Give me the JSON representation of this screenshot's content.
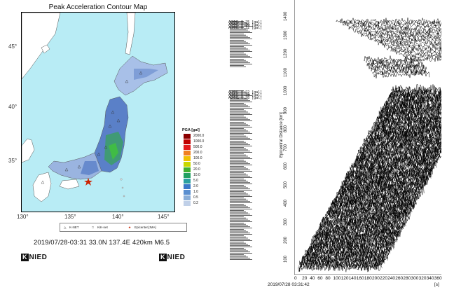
{
  "map": {
    "title": "Peak Acceleration Contour Map",
    "lat_labels": [
      "45°",
      "40°",
      "35°"
    ],
    "lon_labels": [
      "130°",
      "135°",
      "140°",
      "145°"
    ],
    "legend": {
      "knet": "K-NET",
      "kiknet": "KiK-net",
      "epicenter": "Epicenter(JMA)"
    },
    "pga_title": "PGA [gal]",
    "pga_scale": [
      {
        "value": "2000.0",
        "color": "#8b0000"
      },
      {
        "value": "1000.0",
        "color": "#c00000"
      },
      {
        "value": "500.0",
        "color": "#e31a1c"
      },
      {
        "value": "200.0",
        "color": "#f08020"
      },
      {
        "value": "100.0",
        "color": "#f0c000"
      },
      {
        "value": "50.0",
        "color": "#c8d800"
      },
      {
        "value": "20.0",
        "color": "#40b030"
      },
      {
        "value": "10.0",
        "color": "#20a060"
      },
      {
        "value": "5.0",
        "color": "#2aa0a0"
      },
      {
        "value": "2.0",
        "color": "#3a78c8"
      },
      {
        "value": "1.0",
        "color": "#5a8fd0"
      },
      {
        "value": "0.5",
        "color": "#8aaed8"
      },
      {
        "value": "0.2",
        "color": "#c0d0e8"
      }
    ],
    "caption": "2019/07/28-03:31 33.0N 137.4E 420km M6.5",
    "logo_k": "K",
    "logo_text": "NIED"
  },
  "record_section": {
    "y_ticks": [
      "1400",
      "1300",
      "1200",
      "1100",
      "1000",
      "900",
      "800",
      "700",
      "600",
      "500",
      "400",
      "300",
      "200",
      "100"
    ],
    "y_label": "Epicentral Distance [km]",
    "x_ticks": [
      "0",
      "20",
      "40",
      "60",
      "80",
      "100",
      "120",
      "140",
      "160",
      "180",
      "200",
      "220",
      "240",
      "260",
      "280",
      "300",
      "320",
      "340",
      "360"
    ],
    "start_time": "2019/07/28 03:31:42",
    "x_unit": "[s]",
    "station_labels_top": "AOMH1 0.25 [gal]\nAOMH1 0.26 [gal]\nAOMH1 0.32 [gal]",
    "station_labels_mid": "AOMH1 0.22 [gal]\nAOMH1 0.24 [gal]\nAOMH1 0.28 [gal]"
  },
  "colors": {
    "sea": "#b8ecf5",
    "land_low": "#ffffff",
    "land_mid": "#a8c0e8",
    "land_high": "#5580c8",
    "epicenter": "#cc2200"
  }
}
